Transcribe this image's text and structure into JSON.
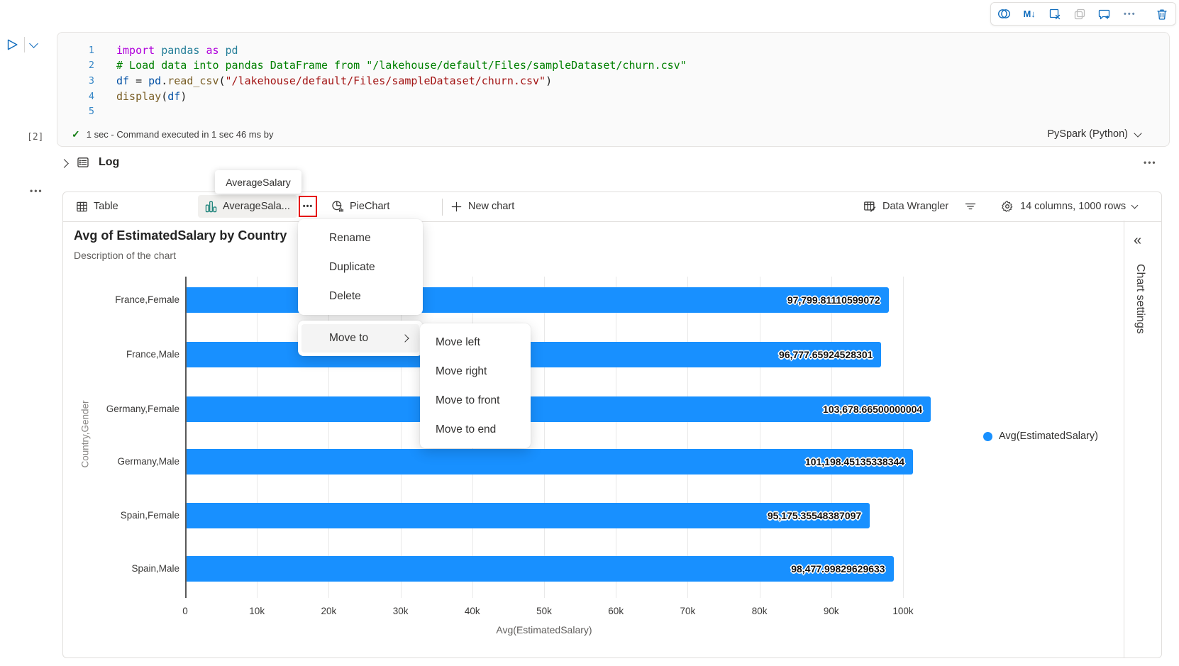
{
  "colors": {
    "accent_blue": "#0f6cbd",
    "bar_blue": "#1890ff",
    "annotation_red": "#e8130c",
    "tab_icon_teal": "#0e7b72",
    "check_green": "#107c10"
  },
  "cell_toolbar": {
    "icons": [
      {
        "name": "copilot-icon"
      },
      {
        "name": "markdown-icon",
        "glyph": "M↓"
      },
      {
        "name": "clear-output-icon"
      },
      {
        "name": "copy-cell-icon",
        "disabled": true
      },
      {
        "name": "add-comment-icon"
      },
      {
        "name": "more-options-icon",
        "glyph": "•••"
      },
      {
        "name": "delete-cell-icon",
        "gap": true
      }
    ]
  },
  "code_cell": {
    "execution_count": "[2]",
    "lines": [
      {
        "num": "1",
        "tokens": [
          [
            "kw",
            "import"
          ],
          [
            "pl",
            " "
          ],
          [
            "mod",
            "pandas"
          ],
          [
            "pl",
            " "
          ],
          [
            "kw",
            "as"
          ],
          [
            "pl",
            " "
          ],
          [
            "mod",
            "pd"
          ]
        ]
      },
      {
        "num": "2",
        "tokens": [
          [
            "cm",
            "# Load data into pandas DataFrame from \"/lakehouse/default/Files/sampleDataset/churn.csv\""
          ]
        ]
      },
      {
        "num": "3",
        "tokens": [
          [
            "var",
            "df"
          ],
          [
            "pl",
            " = "
          ],
          [
            "var",
            "pd"
          ],
          [
            "pl",
            "."
          ],
          [
            "fn",
            "read_csv"
          ],
          [
            "pl",
            "("
          ],
          [
            "str",
            "\"/lakehouse/default/Files/sampleDataset/churn.csv\""
          ],
          [
            "pl",
            ")"
          ]
        ]
      },
      {
        "num": "4",
        "tokens": [
          [
            "fn",
            "display"
          ],
          [
            "pl",
            "("
          ],
          [
            "var",
            "df"
          ],
          [
            "pl",
            ")"
          ]
        ]
      },
      {
        "num": "5",
        "tokens": []
      }
    ],
    "status_text": "1 sec - Command executed in 1 sec 46 ms by",
    "kernel": "PySpark (Python)"
  },
  "log_section": {
    "label": "Log"
  },
  "tooltip": {
    "text": "AverageSalary"
  },
  "results_pane": {
    "tabs": [
      {
        "label": "Table",
        "icon": "table-icon",
        "active": false
      },
      {
        "label": "AverageSala...",
        "icon": "bar-chart-icon",
        "active": true
      },
      {
        "label": "PieChart",
        "icon": "pie-chart-icon",
        "active": false
      },
      {
        "label": "New chart",
        "icon": "plus-icon",
        "active": false,
        "kind": "new"
      }
    ],
    "tab_more_glyph": "•••",
    "data_wrangler_label": "Data Wrangler",
    "table_summary": "14 columns, 1000 rows",
    "chart_settings_label": "Chart settings",
    "collapse_glyph": "«"
  },
  "context_menu": {
    "items": [
      "Rename",
      "Duplicate",
      "Delete"
    ],
    "move_to": "Move to",
    "submenu": [
      "Move left",
      "Move right",
      "Move to front",
      "Move to end"
    ]
  },
  "chart_data": {
    "type": "bar",
    "orientation": "horizontal",
    "title": "Avg of EstimatedSalary by Country",
    "subtitle": "Description of the chart",
    "categories": [
      "France,Female",
      "France,Male",
      "Germany,Female",
      "Germany,Male",
      "Spain,Female",
      "Spain,Male"
    ],
    "values": [
      97799.81110599072,
      96777.65924528301,
      103678.66500000004,
      101198.45135338344,
      95175.35548387097,
      98477.99829629633
    ],
    "value_labels": [
      "97,799.81110599072",
      "96,777.65924528301",
      "103,678.66500000004",
      "101,198.45135338344",
      "95,175.35548387097",
      "98,477.99829629633"
    ],
    "xlabel": "Avg(EstimatedSalary)",
    "ylabel": "Country,Gender",
    "x_ticks": [
      "0",
      "10k",
      "20k",
      "30k",
      "40k",
      "50k",
      "60k",
      "70k",
      "80k",
      "90k",
      "100k"
    ],
    "xlim": [
      0,
      100000
    ],
    "grid": true,
    "legend": [
      {
        "label": "Avg(EstimatedSalary)",
        "color": "#1890ff"
      }
    ],
    "legend_position": "right",
    "bar_color": "#1890ff"
  }
}
